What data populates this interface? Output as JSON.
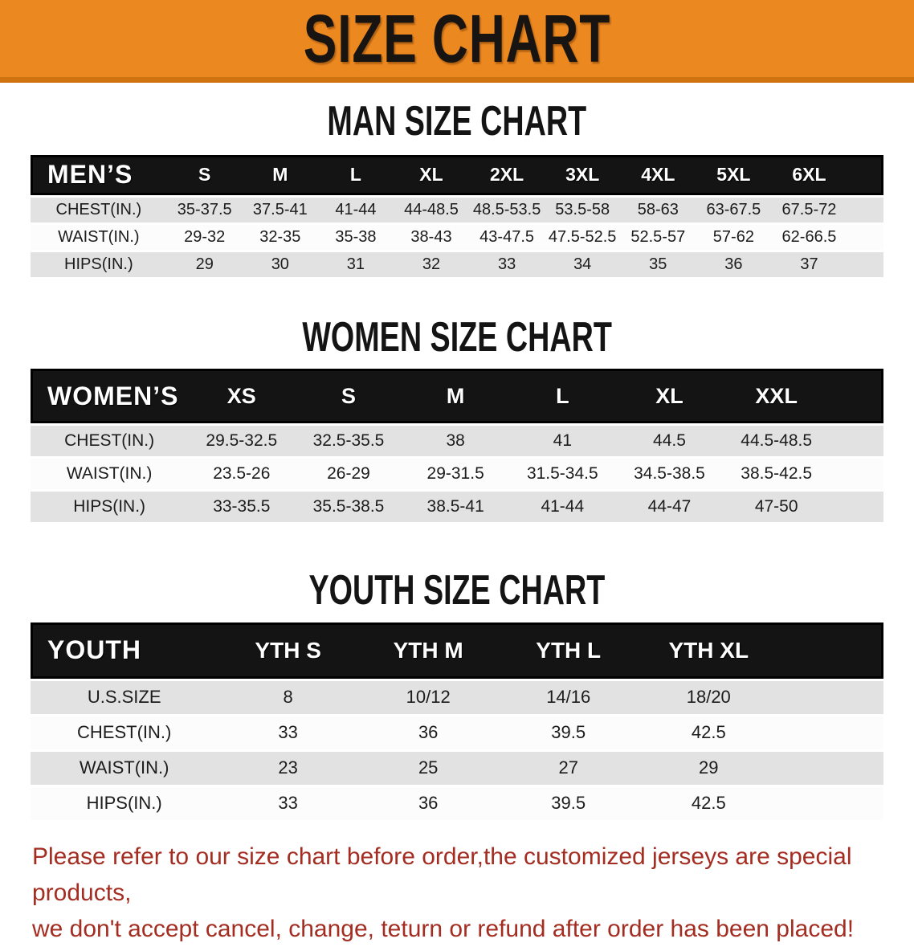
{
  "banner": {
    "title": "SIZE CHART"
  },
  "colors": {
    "banner_bg": "#ec8820",
    "banner_border": "#cf7210",
    "table_header_bg": "#141414",
    "row_gray": "#e2e2e2",
    "row_white": "#fcfcfc",
    "disclaimer_red": "#a42d22"
  },
  "sections": [
    {
      "heading": "MAN SIZE CHART",
      "table": {
        "corner_label": "MEN’S",
        "columns": [
          "S",
          "M",
          "L",
          "XL",
          "2XL",
          "3XL",
          "4XL",
          "5XL",
          "6XL"
        ],
        "rows": [
          {
            "label": "CHEST(IN.)",
            "values": [
              "35-37.5",
              "37.5-41",
              "41-44",
              "44-48.5",
              "48.5-53.5",
              "53.5-58",
              "58-63",
              "63-67.5",
              "67.5-72"
            ]
          },
          {
            "label": "WAIST(IN.)",
            "values": [
              "29-32",
              "32-35",
              "35-38",
              "38-43",
              "43-47.5",
              "47.5-52.5",
              "52.5-57",
              "57-62",
              "62-66.5"
            ]
          },
          {
            "label": "HIPS(IN.)",
            "values": [
              "29",
              "30",
              "31",
              "32",
              "33",
              "34",
              "35",
              "36",
              "37"
            ]
          }
        ]
      }
    },
    {
      "heading": "WOMEN SIZE CHART",
      "table": {
        "corner_label": "WOMEN’S",
        "columns": [
          "XS",
          "S",
          "M",
          "L",
          "XL",
          "XXL"
        ],
        "rows": [
          {
            "label": "CHEST(IN.)",
            "values": [
              "29.5-32.5",
              "32.5-35.5",
              "38",
              "41",
              "44.5",
              "44.5-48.5"
            ]
          },
          {
            "label": "WAIST(IN.)",
            "values": [
              "23.5-26",
              "26-29",
              "29-31.5",
              "31.5-34.5",
              "34.5-38.5",
              "38.5-42.5"
            ]
          },
          {
            "label": "HIPS(IN.)",
            "values": [
              "33-35.5",
              "35.5-38.5",
              "38.5-41",
              "41-44",
              "44-47",
              "47-50"
            ]
          }
        ]
      }
    },
    {
      "heading": "YOUTH SIZE CHART",
      "table": {
        "corner_label": "YOUTH",
        "columns": [
          "YTH S",
          "YTH M",
          "YTH L",
          "YTH XL"
        ],
        "rows": [
          {
            "label": "U.S.SIZE",
            "values": [
              "8",
              "10/12",
              "14/16",
              "18/20"
            ]
          },
          {
            "label": "CHEST(IN.)",
            "values": [
              "33",
              "36",
              "39.5",
              "42.5"
            ]
          },
          {
            "label": "WAIST(IN.)",
            "values": [
              "23",
              "25",
              "27",
              "29"
            ]
          },
          {
            "label": "HIPS(IN.)",
            "values": [
              "33",
              "36",
              "39.5",
              "42.5"
            ]
          }
        ]
      }
    }
  ],
  "disclaimer": {
    "line1": "Please refer to our size chart before order,the customized jerseys are special products,",
    "line2": "we don't accept cancel, change, teturn or refund after order has been placed!"
  }
}
